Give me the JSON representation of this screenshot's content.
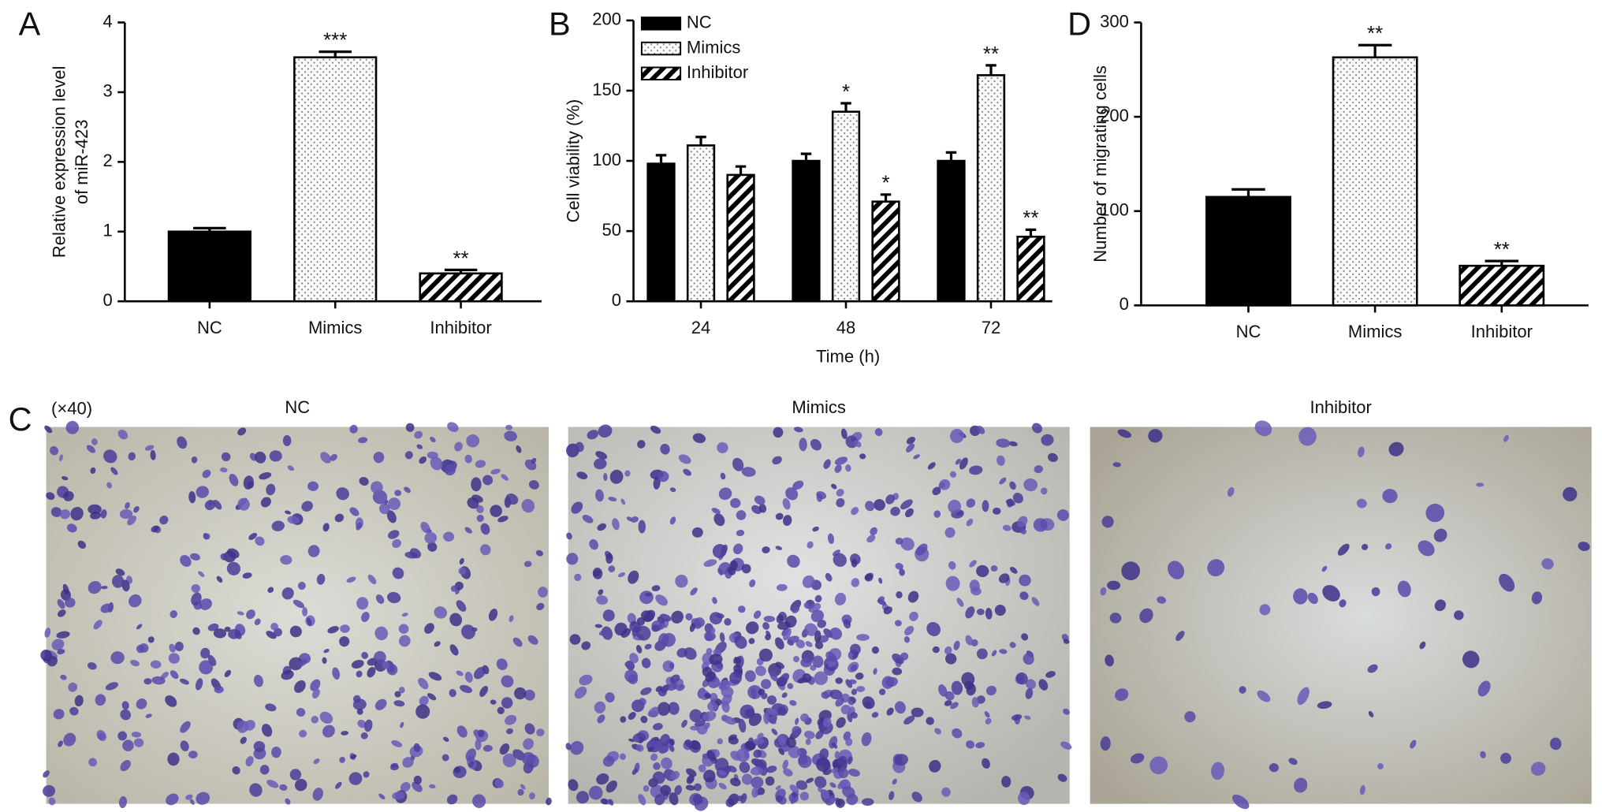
{
  "chart_data": [
    {
      "type": "bar",
      "panel_label": "A",
      "y_label": [
        "Relative expression level",
        "of miR-423"
      ],
      "categories": [
        "NC",
        "Mimics",
        "Inhibitor"
      ],
      "values": [
        1.0,
        3.5,
        0.4
      ],
      "errors": [
        0.05,
        0.08,
        0.05
      ],
      "annotations": [
        null,
        "***",
        "**"
      ],
      "color": "#000000",
      "patterns": [
        "solid",
        "dots",
        "hatch"
      ],
      "ylim": [
        0,
        4
      ],
      "yticks": [
        0,
        1,
        2,
        3,
        4
      ]
    },
    {
      "type": "grouped-bar",
      "panel_label": "B",
      "y_label": [
        "Cell viability (%)"
      ],
      "x_label": "Time (h)",
      "categories": [
        "24",
        "48",
        "72"
      ],
      "legend": "top-left",
      "series": [
        {
          "name": "NC",
          "color": "#000000",
          "pattern": "solid",
          "values": [
            98,
            100,
            100
          ],
          "errors": [
            6,
            5,
            6
          ],
          "annotations": [
            null,
            null,
            null
          ]
        },
        {
          "name": "Mimics",
          "color": "#000000",
          "pattern": "dots",
          "values": [
            111,
            135,
            161
          ],
          "errors": [
            6,
            6,
            7
          ],
          "annotations": [
            null,
            "*",
            "**"
          ]
        },
        {
          "name": "Inhibitor",
          "color": "#000000",
          "pattern": "hatch",
          "values": [
            90,
            71,
            46
          ],
          "errors": [
            6,
            5,
            5
          ],
          "annotations": [
            null,
            "*",
            "**"
          ]
        }
      ],
      "ylim": [
        0,
        200
      ],
      "yticks": [
        0,
        50,
        100,
        150,
        200
      ]
    },
    {
      "type": "bar",
      "panel_label": "D",
      "y_label": [
        "Number of migrating cells"
      ],
      "categories": [
        "NC",
        "Mimics",
        "Inhibitor"
      ],
      "values": [
        115,
        263,
        42
      ],
      "errors": [
        8,
        13,
        5
      ],
      "annotations": [
        null,
        "**",
        "**"
      ],
      "color": "#000000",
      "patterns": [
        "solid",
        "dots",
        "hatch"
      ],
      "ylim": [
        0,
        300
      ],
      "yticks": [
        0,
        100,
        200,
        300
      ]
    }
  ],
  "image_panel": {
    "panel_label": "C",
    "magnification": "(×40)",
    "captions": [
      "NC",
      "Mimics",
      "Inhibitor"
    ]
  }
}
